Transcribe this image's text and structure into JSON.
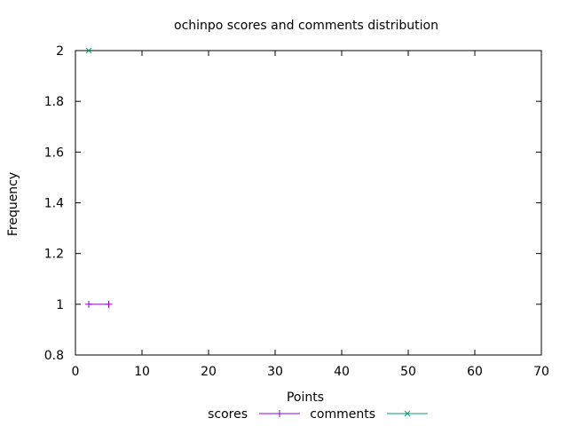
{
  "chart_data": {
    "type": "line",
    "title": "ochinpo scores and comments distribution",
    "xlabel": "Points",
    "ylabel": "Frequency",
    "xlim": [
      0,
      70
    ],
    "ylim": [
      0.8,
      2
    ],
    "x_ticks": [
      "0",
      "10",
      "20",
      "30",
      "40",
      "50",
      "60",
      "70"
    ],
    "x_tick_values": [
      0,
      10,
      20,
      30,
      40,
      50,
      60,
      70
    ],
    "y_ticks": [
      "0.8",
      "1",
      "1.2",
      "1.4",
      "1.6",
      "1.8",
      "2"
    ],
    "y_tick_values": [
      0.8,
      1.0,
      1.2,
      1.4,
      1.6,
      1.8,
      2.0
    ],
    "grid": false,
    "legend_position": "bottom",
    "series": [
      {
        "name": "scores",
        "color": "#9400d3",
        "marker": "plus",
        "points": [
          [
            2,
            1
          ],
          [
            5,
            1
          ]
        ]
      },
      {
        "name": "comments",
        "color": "#009e73",
        "marker": "x",
        "points": [
          [
            2,
            2
          ]
        ]
      }
    ]
  }
}
